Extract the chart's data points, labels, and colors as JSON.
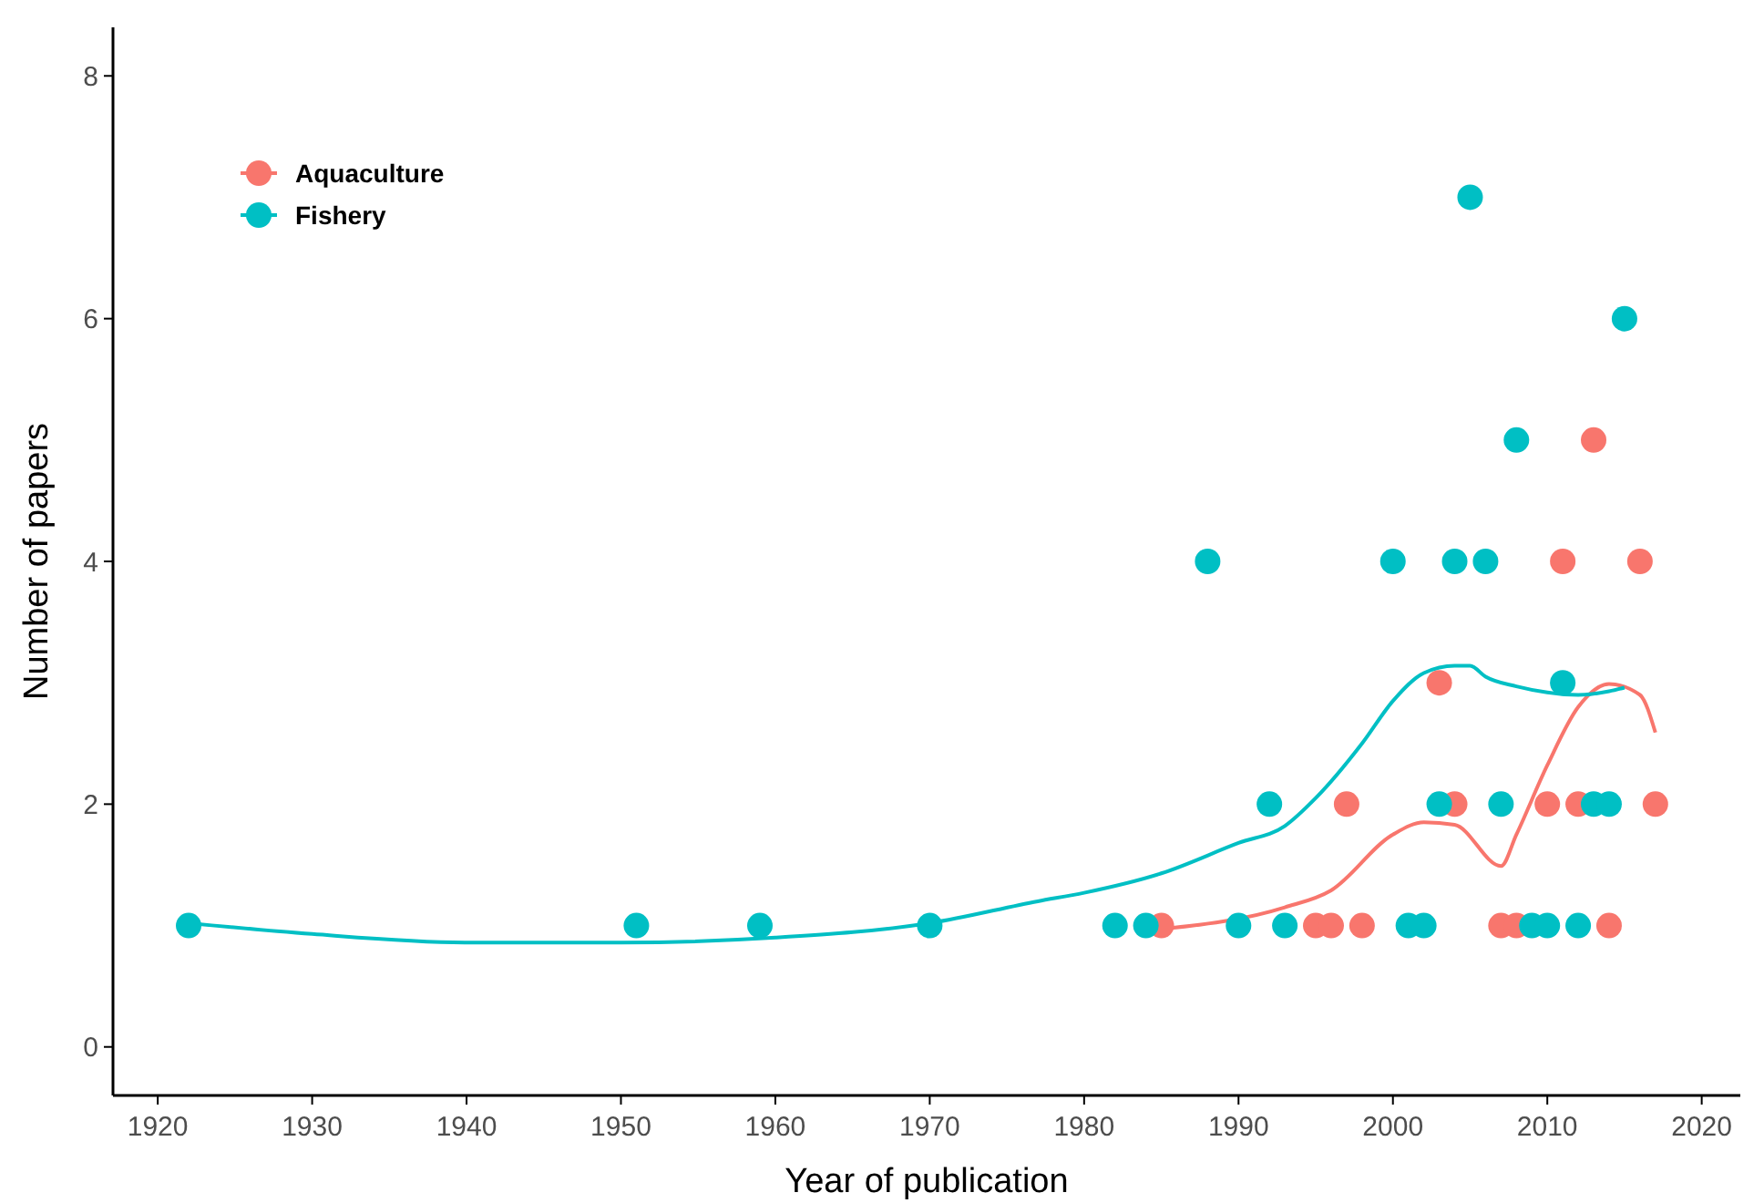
{
  "chart_data": {
    "type": "scatter",
    "xlabel": "Year of publication",
    "ylabel": "Number of papers",
    "xlim": [
      1917.1,
      2022.5
    ],
    "xticks": [
      1920,
      1930,
      1940,
      1950,
      1960,
      1970,
      1980,
      1990,
      2000,
      2010,
      2020
    ],
    "ylim": [
      -0.4,
      8.4
    ],
    "yticks": [
      0,
      2,
      4,
      6,
      8
    ],
    "grid": false,
    "legend": "top left",
    "marker": "circle",
    "series": [
      {
        "name": "Aquaculture",
        "color": "#f8766d",
        "x": [
          1985,
          1995,
          1996,
          1998,
          2007,
          2008,
          2014,
          1997,
          2004,
          2010,
          2012,
          2017,
          2003,
          2011,
          2016,
          2013
        ],
        "values": [
          1,
          1,
          1,
          1,
          1,
          1,
          1,
          2,
          2,
          2,
          2,
          2,
          3,
          4,
          4,
          5
        ]
      },
      {
        "name": "Fishery",
        "color": "#00bfc4",
        "x": [
          1922,
          1951,
          1959,
          1970,
          1982,
          1984,
          1990,
          1993,
          2001,
          2002,
          2009,
          2010,
          2012,
          1992,
          2003,
          2007,
          2013,
          2014,
          2011,
          1988,
          2000,
          2004,
          2006,
          2008,
          2015,
          2005
        ],
        "values": [
          1,
          1,
          1,
          1,
          1,
          1,
          1,
          1,
          1,
          1,
          1,
          1,
          1,
          2,
          2,
          2,
          2,
          2,
          3,
          4,
          4,
          4,
          4,
          5,
          6,
          7
        ]
      },
      {
        "type": "line",
        "color": "#f8766d",
        "marker": "none",
        "x": [
          1985,
          1993,
          1996,
          2000,
          2002,
          2004,
          2007,
          2008,
          2010,
          2012,
          2014,
          2016,
          2017
        ],
        "values": [
          0.97,
          1.15,
          1.29,
          1.75,
          1.85,
          1.83,
          1.49,
          1.75,
          2.32,
          2.8,
          2.99,
          2.9,
          2.59
        ]
      },
      {
        "type": "line",
        "color": "#00bfc4",
        "marker": "none",
        "x": [
          1922,
          1930,
          1940,
          1950,
          1960,
          1970,
          1977,
          1980,
          1985,
          1990,
          1993,
          1995,
          1998,
          2000,
          2002,
          2004,
          2005,
          2006,
          2008,
          2010,
          2012,
          2014,
          2015
        ],
        "values": [
          1.02,
          0.93,
          0.86,
          0.86,
          0.9,
          1.02,
          1.2,
          1.27,
          1.43,
          1.68,
          1.82,
          2.05,
          2.5,
          2.85,
          3.08,
          3.14,
          3.14,
          3.05,
          2.97,
          2.92,
          2.9,
          2.93,
          2.96
        ]
      }
    ]
  }
}
